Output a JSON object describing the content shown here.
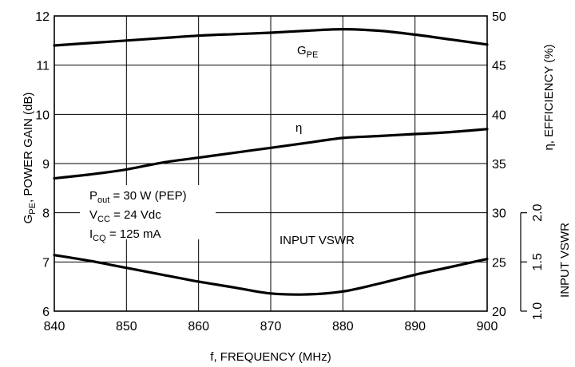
{
  "chart_data": {
    "type": "line",
    "xlabel": "f, FREQUENCY (MHz)",
    "xlim": [
      840,
      900
    ],
    "x_ticks": [
      840,
      850,
      860,
      870,
      880,
      890,
      900
    ],
    "left_axis": {
      "label_main": "G",
      "label_sub": "PE",
      "label_rest": ", POWER GAIN (dB)",
      "range": [
        6,
        12
      ],
      "ticks": [
        6,
        7,
        8,
        9,
        10,
        11,
        12
      ]
    },
    "right_axis": {
      "label": "η, EFFICIENCY (%)",
      "range": [
        20,
        50
      ],
      "ticks": [
        20,
        25,
        30,
        35,
        40,
        45,
        50
      ]
    },
    "vswr_axis": {
      "label": "INPUT VSWR",
      "range": [
        1.0,
        2.0
      ],
      "ticks": [
        "1.0",
        "1.5",
        "2.0"
      ]
    },
    "series": [
      {
        "name": "GPE",
        "label_main": "G",
        "label_sub": "PE",
        "axis": "left",
        "x": [
          840,
          845,
          850,
          855,
          860,
          865,
          870,
          875,
          880,
          885,
          890,
          895,
          900
        ],
        "y": [
          11.4,
          11.45,
          11.5,
          11.55,
          11.6,
          11.63,
          11.66,
          11.7,
          11.73,
          11.7,
          11.62,
          11.52,
          11.42
        ]
      },
      {
        "name": "η",
        "axis": "right",
        "x": [
          840,
          845,
          850,
          855,
          860,
          865,
          870,
          875,
          880,
          885,
          890,
          895,
          900
        ],
        "y": [
          33.5,
          33.9,
          34.4,
          35.1,
          35.6,
          36.1,
          36.6,
          37.1,
          37.6,
          37.8,
          38.0,
          38.2,
          38.5
        ]
      },
      {
        "name": "INPUT VSWR",
        "axis": "vswr",
        "x": [
          840,
          845,
          850,
          855,
          860,
          865,
          870,
          875,
          880,
          885,
          890,
          895,
          900
        ],
        "y": [
          1.57,
          1.51,
          1.44,
          1.37,
          1.3,
          1.24,
          1.18,
          1.17,
          1.2,
          1.28,
          1.37,
          1.45,
          1.53
        ]
      }
    ],
    "annotations": {
      "conditions": [
        {
          "main": "P",
          "sub": "out",
          "rest": " = 30 W (PEP)"
        },
        {
          "main": "V",
          "sub": "CC",
          "rest": " = 24 Vdc"
        },
        {
          "main": "I",
          "sub": "CQ",
          "rest": " = 125 mA"
        }
      ]
    },
    "grid": true
  }
}
